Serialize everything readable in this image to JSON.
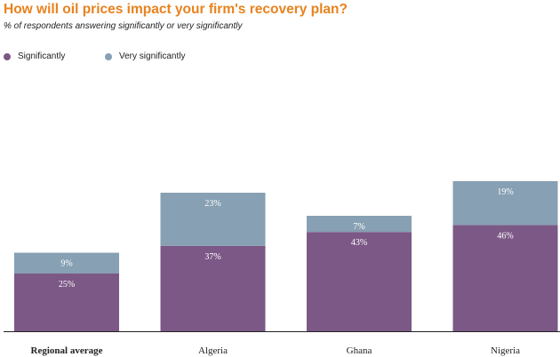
{
  "chart_data": {
    "type": "bar",
    "stacked": true,
    "title": "How will oil prices impact your firm's recovery plan?",
    "subtitle": "% of respondents answering significantly or very significantly",
    "categories": [
      "Regional average",
      "Algeria",
      "Ghana",
      "Nigeria"
    ],
    "series": [
      {
        "name": "Significantly",
        "color": "#7c5886",
        "values": [
          25,
          37,
          43,
          46
        ]
      },
      {
        "name": "Very significantly",
        "color": "#87a0b3",
        "values": [
          9,
          23,
          7,
          19
        ]
      }
    ],
    "value_labels": [
      [
        "25%",
        "37%",
        "43%",
        "46%"
      ],
      [
        "9%",
        "23%",
        "7%",
        "19%"
      ]
    ],
    "legend_position": "top-left",
    "grid": false
  }
}
